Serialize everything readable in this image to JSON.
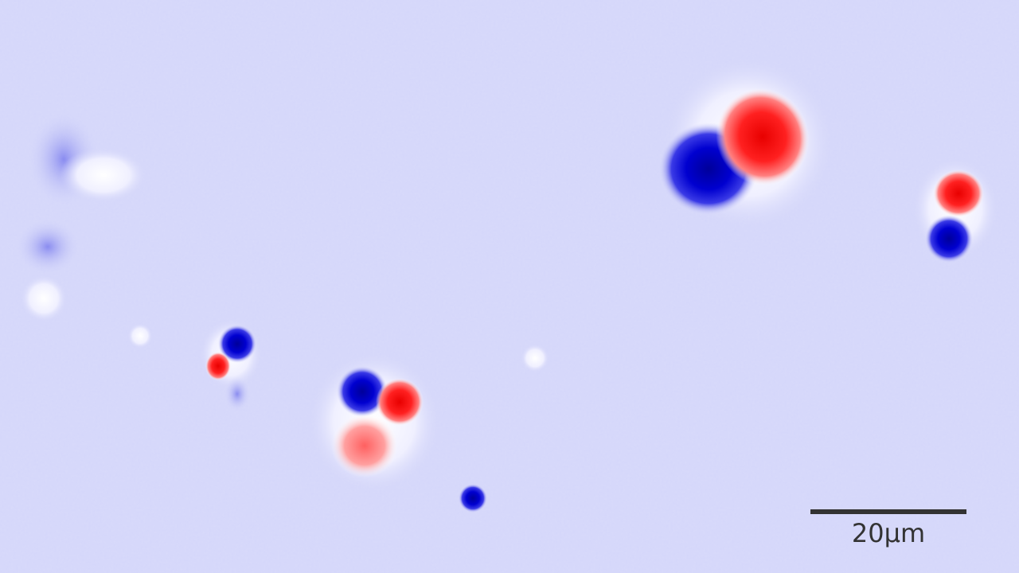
{
  "image": {
    "description_kind": "magnetic-force-microscopy phase map",
    "colormap": {
      "background": "#d4d6fa",
      "negative": "#0000cc",
      "positive": "#ff0000",
      "neutral": "#ffffff"
    }
  },
  "scale_bar": {
    "label": "20µm",
    "color": "#333333"
  }
}
